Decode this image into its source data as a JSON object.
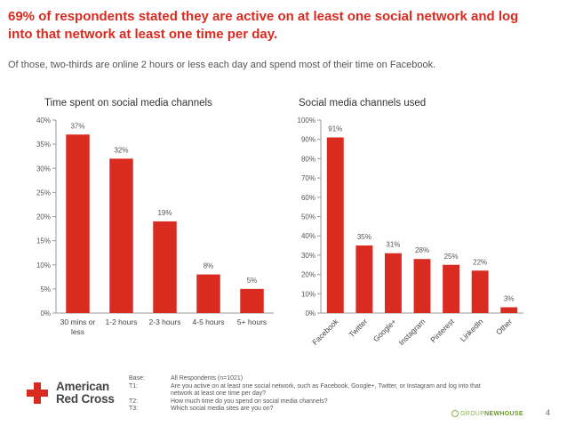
{
  "headline": "69% of respondents stated they are active on at least one social network and log into that network at least one time per day.",
  "subline": "Of those, two-thirds are online 2 hours or less each day and spend most of their time on Facebook.",
  "colors": {
    "accent": "#d92b20",
    "bar": "#d92b20",
    "axis": "#9a9a9a"
  },
  "chart_data": [
    {
      "type": "bar",
      "title": "Time spent on social media channels",
      "categories": [
        "30 mins or less",
        "1-2 hours",
        "2-3 hours",
        "4-5 hours",
        "5+ hours"
      ],
      "category_lines": [
        [
          "30 mins or",
          "less"
        ],
        [
          "1-2 hours"
        ],
        [
          "2-3 hours"
        ],
        [
          "4-5 hours"
        ],
        [
          "5+ hours"
        ]
      ],
      "values": [
        37,
        32,
        19,
        8,
        5
      ],
      "data_labels": [
        "37%",
        "32%",
        "19%",
        "8%",
        "5%"
      ],
      "ylim": [
        0,
        40
      ],
      "yticks": [
        "0%",
        "5%",
        "10%",
        "15%",
        "20%",
        "25%",
        "30%",
        "35%",
        "40%"
      ],
      "grid": false
    },
    {
      "type": "bar",
      "title": "Social media channels used",
      "categories": [
        "Facebook",
        "Twitter",
        "Google+",
        "Instagram",
        "Pinterest",
        "LinkedIn",
        "Other"
      ],
      "values": [
        91,
        35,
        31,
        28,
        25,
        22,
        3
      ],
      "data_labels": [
        "91%",
        "35%",
        "31%",
        "28%",
        "25%",
        "22%",
        "3%"
      ],
      "ylim": [
        0,
        100
      ],
      "yticks": [
        "0%",
        "10%",
        "20%",
        "30%",
        "40%",
        "50%",
        "60%",
        "70%",
        "80%",
        "90%",
        "100%"
      ],
      "category_label_rotation": "diagonal",
      "grid": false
    }
  ],
  "footer": {
    "logo_line1": "American",
    "logo_line2": "Red Cross",
    "notes": [
      {
        "key": "Base:",
        "value": "All Respondents (n=1021)"
      },
      {
        "key": "T1:",
        "value": "Are you active on at least one social network, such as Facebook, Google+, Twitter, or Instagram and log into that network at least one time per day?"
      },
      {
        "key": "T2:",
        "value": "How much time do you spend on social media channels?"
      },
      {
        "key": "T3:",
        "value": "Which social media sites are you on?"
      }
    ],
    "brand_prefix": "GROUP",
    "brand_suffix": "NEWHOUSE",
    "page_number": "4"
  }
}
